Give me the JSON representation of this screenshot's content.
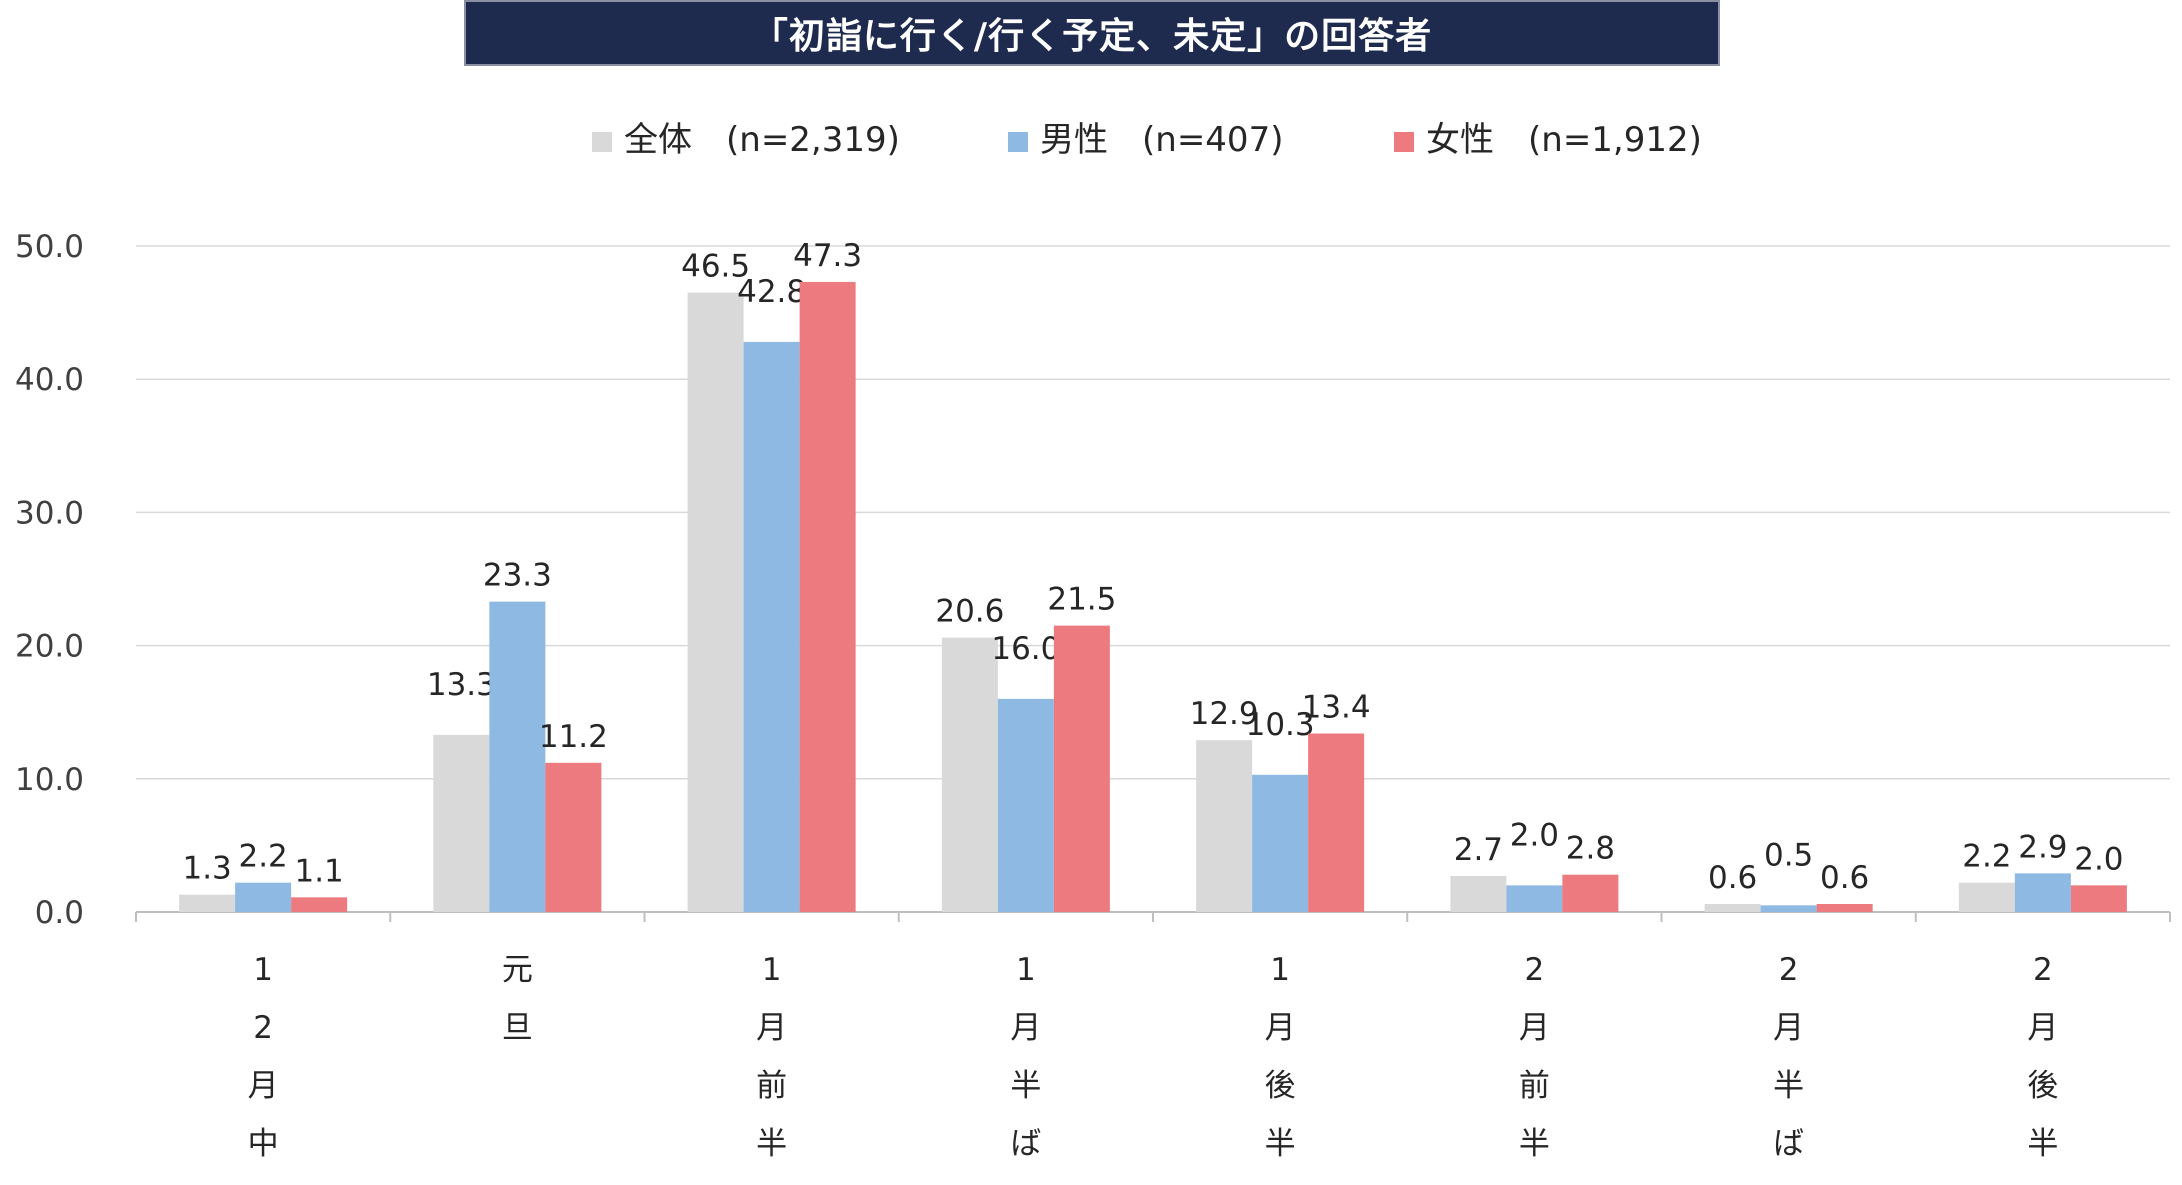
{
  "chart_data": {
    "type": "bar",
    "title": "「初詣に行く/行く予定、未定」の回答者",
    "categories": [
      "12月中",
      "元旦",
      "1月前半",
      "1月半ば",
      "1月後半",
      "2月前半",
      "2月半ば",
      "2月後半"
    ],
    "series": [
      {
        "name": "全体　(n=2,319)",
        "color": "#d9d9d9",
        "values": [
          1.3,
          13.3,
          46.5,
          20.6,
          12.9,
          2.7,
          0.6,
          2.2
        ]
      },
      {
        "name": "男性　(n=407)",
        "color": "#8db9e3",
        "values": [
          2.2,
          23.3,
          42.8,
          16.0,
          10.3,
          2.0,
          0.5,
          2.9
        ]
      },
      {
        "name": "女性　(n=1,912)",
        "color": "#ec7a7e",
        "values": [
          1.1,
          11.2,
          47.3,
          21.5,
          13.4,
          2.8,
          0.6,
          2.0
        ]
      }
    ],
    "ylim": [
      0,
      50
    ],
    "yticks": [
      "0.0",
      "10.0",
      "20.0",
      "30.0",
      "40.0",
      "50.0"
    ],
    "ytick_values": [
      0,
      10,
      20,
      30,
      40,
      50
    ],
    "grid": true,
    "legend_position": "top-center",
    "xlabel": "",
    "ylabel": ""
  }
}
